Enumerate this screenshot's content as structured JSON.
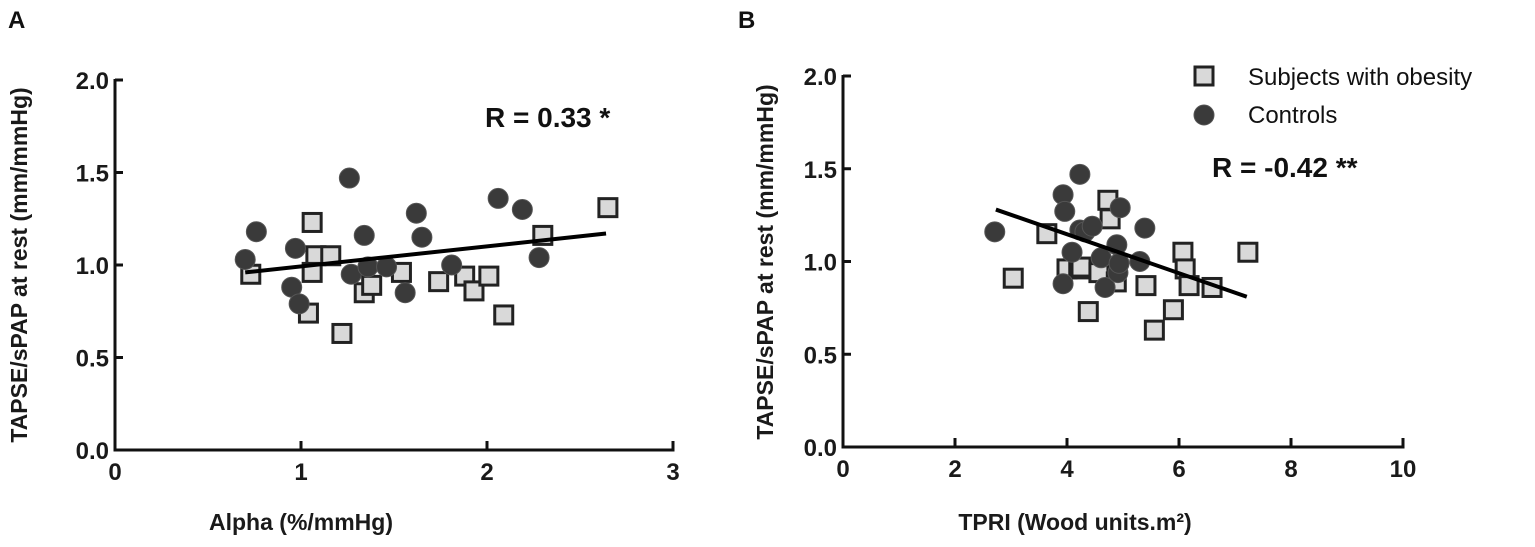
{
  "panels": {
    "a": {
      "letter": "A",
      "annotation": "R = 0.33 *",
      "xlabel": "Alpha (%/mmHg)",
      "ylabel": "TAPSE/sPAP at rest (mm/mmHg)",
      "xticks": [
        "0",
        "1",
        "2",
        "3"
      ],
      "yticks": [
        "0.0",
        "0.5",
        "1.0",
        "1.5",
        "2.0"
      ]
    },
    "b": {
      "letter": "B",
      "annotation": "R = -0.42 **",
      "xlabel": "TPRI (Wood units.m²)",
      "ylabel": "TAPSE/sPAP at rest (mm/mmHg)",
      "xticks": [
        "0",
        "2",
        "4",
        "6",
        "8",
        "10"
      ],
      "yticks": [
        "0.0",
        "0.5",
        "1.0",
        "1.5",
        "2.0"
      ]
    }
  },
  "legend": {
    "items": [
      {
        "label": "Subjects with obesity",
        "marker": "square",
        "color": "#d9d9d9"
      },
      {
        "label": "Controls",
        "marker": "circle",
        "color": "#3a3a3a"
      }
    ]
  },
  "colors": {
    "obesity_fill": "#d9d9d9",
    "obesity_edge": "#222222",
    "controls_fill": "#3a3a3a",
    "regression": "#000000"
  },
  "chart_data": [
    {
      "type": "scatter",
      "title": "A",
      "xlabel": "Alpha (%/mmHg)",
      "ylabel": "TAPSE/sPAP at rest (mm/mmHg)",
      "xlim": [
        0,
        3
      ],
      "ylim": [
        0,
        2.0
      ],
      "xticks": [
        0,
        1,
        2,
        3
      ],
      "yticks": [
        0,
        0.5,
        1.0,
        1.5,
        2.0
      ],
      "grid": false,
      "annotation": "R = 0.33 *",
      "series": [
        {
          "name": "Subjects with obesity",
          "marker": "square",
          "points": [
            [
              0.73,
              0.95
            ],
            [
              1.06,
              1.23
            ],
            [
              1.08,
              1.05
            ],
            [
              1.16,
              1.05
            ],
            [
              1.06,
              0.96
            ],
            [
              1.04,
              0.74
            ],
            [
              1.34,
              0.85
            ],
            [
              1.38,
              0.89
            ],
            [
              1.22,
              0.63
            ],
            [
              1.54,
              0.96
            ],
            [
              1.74,
              0.91
            ],
            [
              1.88,
              0.94
            ],
            [
              1.93,
              0.86
            ],
            [
              2.01,
              0.94
            ],
            [
              2.09,
              0.73
            ],
            [
              2.3,
              1.16
            ],
            [
              2.65,
              1.31
            ]
          ]
        },
        {
          "name": "Controls",
          "marker": "circle",
          "points": [
            [
              0.7,
              1.03
            ],
            [
              0.76,
              1.18
            ],
            [
              0.97,
              1.09
            ],
            [
              0.95,
              0.88
            ],
            [
              0.99,
              0.79
            ],
            [
              1.26,
              1.47
            ],
            [
              1.27,
              0.95
            ],
            [
              1.34,
              1.16
            ],
            [
              1.36,
              0.99
            ],
            [
              1.46,
              0.99
            ],
            [
              1.56,
              0.85
            ],
            [
              1.62,
              1.28
            ],
            [
              1.65,
              1.15
            ],
            [
              1.81,
              1.0
            ],
            [
              2.06,
              1.36
            ],
            [
              2.19,
              1.3
            ],
            [
              2.28,
              1.04
            ]
          ]
        }
      ],
      "regression_line": [
        [
          0.7,
          0.96
        ],
        [
          2.64,
          1.17
        ]
      ]
    },
    {
      "type": "scatter",
      "title": "B",
      "xlabel": "TPRI (Wood units.m²)",
      "ylabel": "TAPSE/sPAP at rest (mm/mmHg)",
      "xlim": [
        0,
        10
      ],
      "ylim": [
        0,
        2.0
      ],
      "xticks": [
        0,
        2,
        4,
        6,
        8,
        10
      ],
      "yticks": [
        0,
        0.5,
        1.0,
        1.5,
        2.0
      ],
      "grid": false,
      "legend_position": "upper right",
      "annotation": "R = -0.42 **",
      "series": [
        {
          "name": "Subjects with obesity",
          "marker": "square",
          "points": [
            [
              3.04,
              0.91
            ],
            [
              3.64,
              1.15
            ],
            [
              4.0,
              0.96
            ],
            [
              4.21,
              0.96
            ],
            [
              4.25,
              0.97
            ],
            [
              4.38,
              0.73
            ],
            [
              4.57,
              0.94
            ],
            [
              4.73,
              1.33
            ],
            [
              4.77,
              1.23
            ],
            [
              4.88,
              0.89
            ],
            [
              5.41,
              0.87
            ],
            [
              5.56,
              0.63
            ],
            [
              5.9,
              0.74
            ],
            [
              6.07,
              1.05
            ],
            [
              6.11,
              0.96
            ],
            [
              6.18,
              0.87
            ],
            [
              6.59,
              0.86
            ],
            [
              7.23,
              1.05
            ]
          ]
        },
        {
          "name": "Controls",
          "marker": "circle",
          "points": [
            [
              2.71,
              1.16
            ],
            [
              3.93,
              1.36
            ],
            [
              3.96,
              1.27
            ],
            [
              3.93,
              0.88
            ],
            [
              4.09,
              1.05
            ],
            [
              4.23,
              1.47
            ],
            [
              4.23,
              1.17
            ],
            [
              4.32,
              1.16
            ],
            [
              4.45,
              1.19
            ],
            [
              4.61,
              1.02
            ],
            [
              4.68,
              0.86
            ],
            [
              4.89,
              1.09
            ],
            [
              4.91,
              0.94
            ],
            [
              4.93,
              0.99
            ],
            [
              4.95,
              1.29
            ],
            [
              5.3,
              1.0
            ],
            [
              5.39,
              1.18
            ]
          ]
        }
      ],
      "regression_line": [
        [
          2.73,
          1.28
        ],
        [
          7.21,
          0.81
        ]
      ]
    }
  ]
}
